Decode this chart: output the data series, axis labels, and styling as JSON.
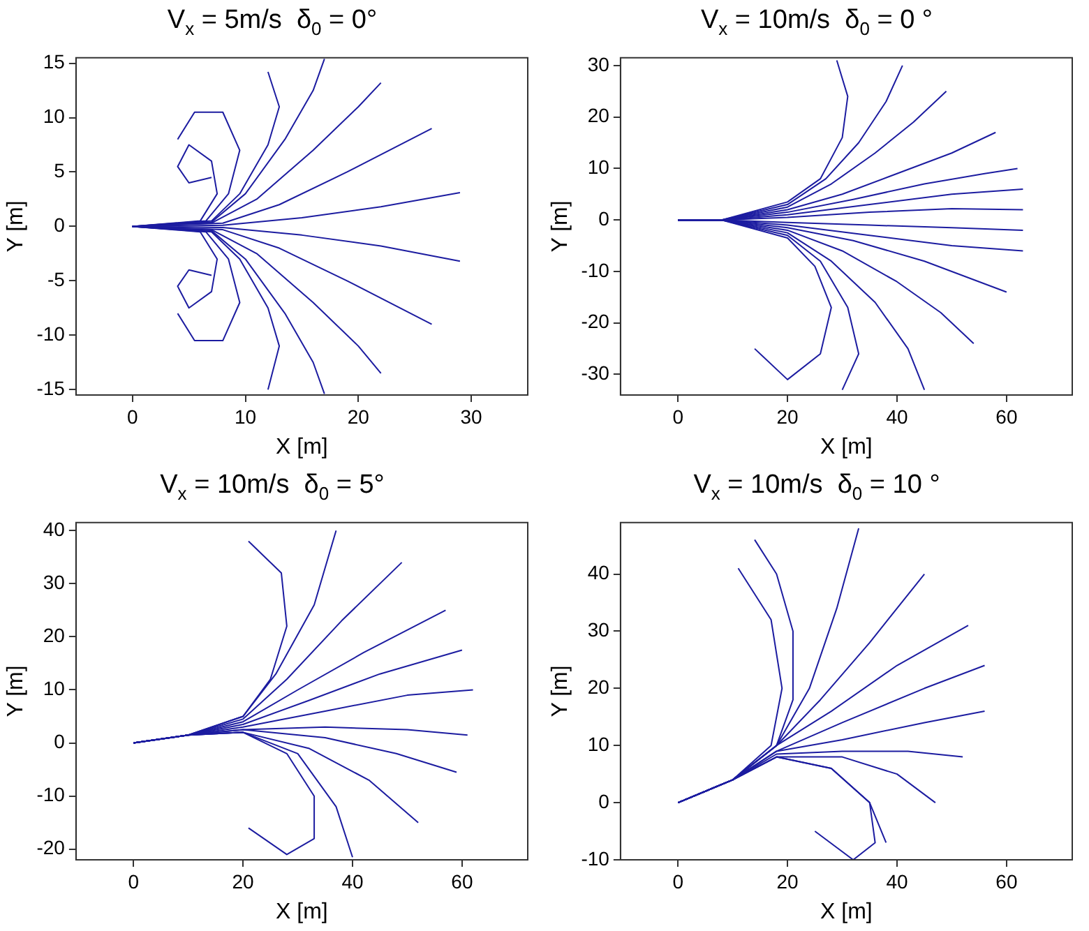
{
  "chart_data": [
    {
      "type": "line",
      "title": "V$_{x}$ = 5m/s  δ$_{0}$ = 0°",
      "xlabel": "X [m]",
      "ylabel": "Y [m]",
      "xlim": [
        -5,
        35
      ],
      "ylim": [
        -15.5,
        15.5
      ],
      "xticks": [
        0,
        10,
        20,
        30
      ],
      "yticks": [
        -15,
        -10,
        -5,
        0,
        5,
        10,
        15
      ],
      "marker": "none",
      "series": [
        {
          "color": "#1c1ca0",
          "x": [
            0,
            8,
            15,
            22,
            29
          ],
          "values": [
            0,
            0.1,
            0.8,
            1.8,
            3.1
          ]
        },
        {
          "color": "#1c1ca0",
          "x": [
            0,
            8,
            13,
            19,
            26.5
          ],
          "values": [
            0,
            0.3,
            2,
            5,
            9
          ]
        },
        {
          "color": "#1c1ca0",
          "x": [
            0,
            7,
            11,
            16,
            20,
            22
          ],
          "values": [
            0,
            0.3,
            2.5,
            7,
            11,
            13.2
          ]
        },
        {
          "color": "#1c1ca0",
          "x": [
            0,
            7,
            10,
            13.5,
            16,
            17
          ],
          "values": [
            0,
            0.4,
            3,
            8,
            12.5,
            15.4
          ]
        },
        {
          "color": "#1c1ca0",
          "x": [
            0,
            7,
            9.5,
            12,
            13,
            12
          ],
          "values": [
            0,
            0.5,
            3,
            7.5,
            11,
            14.2
          ]
        },
        {
          "color": "#1c1ca0",
          "x": [
            0,
            6.5,
            8.5,
            9.5,
            8,
            5.5,
            4
          ],
          "values": [
            0,
            0.5,
            3,
            7,
            10.5,
            10.5,
            8
          ]
        },
        {
          "color": "#1c1ca0",
          "x": [
            0,
            6,
            7.5,
            7,
            5,
            4,
            5,
            7
          ],
          "values": [
            0,
            0.5,
            3,
            6,
            7.5,
            5.5,
            4,
            4.5
          ]
        },
        {
          "color": "#1c1ca0",
          "x": [
            0,
            8,
            15,
            22,
            29
          ],
          "values": [
            0,
            -0.1,
            -0.8,
            -1.8,
            -3.2
          ]
        },
        {
          "color": "#1c1ca0",
          "x": [
            0,
            8,
            13,
            19,
            26.5
          ],
          "values": [
            0,
            -0.3,
            -2,
            -5,
            -9
          ]
        },
        {
          "color": "#1c1ca0",
          "x": [
            0,
            7,
            11,
            16,
            20,
            22
          ],
          "values": [
            0,
            -0.3,
            -2.5,
            -7,
            -11,
            -13.5
          ]
        },
        {
          "color": "#1c1ca0",
          "x": [
            0,
            7,
            10,
            13.5,
            16,
            17
          ],
          "values": [
            0,
            -0.4,
            -3,
            -8,
            -12.5,
            -15.4
          ]
        },
        {
          "color": "#1c1ca0",
          "x": [
            0,
            7,
            9.5,
            12,
            13,
            12
          ],
          "values": [
            0,
            -0.5,
            -3,
            -7.5,
            -11,
            -15
          ]
        },
        {
          "color": "#1c1ca0",
          "x": [
            0,
            6.5,
            8.5,
            9.5,
            8,
            5.5,
            4
          ],
          "values": [
            0,
            -0.5,
            -3,
            -7,
            -10.5,
            -10.5,
            -8
          ]
        },
        {
          "color": "#1c1ca0",
          "x": [
            0,
            6,
            7.5,
            7,
            5,
            4,
            5,
            7
          ],
          "values": [
            0,
            -0.5,
            -3,
            -6,
            -7.5,
            -5.5,
            -4,
            -4.5
          ]
        }
      ]
    },
    {
      "type": "line",
      "title": "V$_{x}$ = 10m/s  δ$_{0}$ = 0 °",
      "xlabel": "X [m]",
      "ylabel": "Y [m]",
      "xlim": [
        -10.5,
        72
      ],
      "ylim": [
        -34,
        31.5
      ],
      "xticks": [
        0,
        20,
        40,
        60
      ],
      "yticks": [
        -30,
        -20,
        -10,
        0,
        10,
        20,
        30
      ],
      "marker": "none",
      "series": [
        {
          "color": "#1c1ca0",
          "x": [
            0,
            8,
            20,
            35,
            50,
            63
          ],
          "values": [
            0,
            0,
            0.5,
            1.5,
            2.2,
            2
          ]
        },
        {
          "color": "#1c1ca0",
          "x": [
            0,
            8,
            20,
            35,
            50,
            63
          ],
          "values": [
            0,
            0,
            1,
            3,
            5,
            6
          ]
        },
        {
          "color": "#1c1ca0",
          "x": [
            0,
            8,
            20,
            32,
            45,
            56,
            62
          ],
          "values": [
            0,
            0,
            1.5,
            4,
            7,
            9,
            10
          ]
        },
        {
          "color": "#1c1ca0",
          "x": [
            0,
            8,
            20,
            30,
            40,
            50,
            58
          ],
          "values": [
            0,
            0,
            2,
            5,
            9,
            13,
            17
          ]
        },
        {
          "color": "#1c1ca0",
          "x": [
            0,
            8,
            20,
            28,
            36,
            43,
            49
          ],
          "values": [
            0,
            0,
            2.5,
            7,
            13,
            19,
            25
          ]
        },
        {
          "color": "#1c1ca0",
          "x": [
            0,
            8,
            20,
            27,
            33,
            38,
            41
          ],
          "values": [
            0,
            0,
            3,
            8,
            15,
            23,
            30
          ]
        },
        {
          "color": "#1c1ca0",
          "x": [
            0,
            8,
            20,
            26,
            30,
            31,
            29
          ],
          "values": [
            0,
            0,
            3.5,
            8,
            16,
            24,
            31
          ]
        },
        {
          "color": "#1c1ca0",
          "x": [
            0,
            8,
            20,
            35,
            50,
            63
          ],
          "values": [
            0,
            0,
            -0.5,
            -1,
            -1.5,
            -2
          ]
        },
        {
          "color": "#1c1ca0",
          "x": [
            0,
            8,
            20,
            35,
            50,
            63
          ],
          "values": [
            0,
            0,
            -1,
            -3,
            -5,
            -6
          ]
        },
        {
          "color": "#1c1ca0",
          "x": [
            0,
            8,
            20,
            32,
            45,
            55,
            60
          ],
          "values": [
            0,
            0,
            -1.5,
            -4,
            -8,
            -12,
            -14
          ]
        },
        {
          "color": "#1c1ca0",
          "x": [
            0,
            8,
            20,
            30,
            40,
            48,
            54
          ],
          "values": [
            0,
            0,
            -2,
            -6,
            -12,
            -18,
            -24
          ]
        },
        {
          "color": "#1c1ca0",
          "x": [
            0,
            8,
            20,
            28,
            36,
            42,
            45
          ],
          "values": [
            0,
            0,
            -2.5,
            -8,
            -16,
            -25,
            -33
          ]
        },
        {
          "color": "#1c1ca0",
          "x": [
            0,
            8,
            20,
            26,
            31,
            33,
            30
          ],
          "values": [
            0,
            0,
            -3,
            -8,
            -17,
            -26,
            -33
          ]
        },
        {
          "color": "#1c1ca0",
          "x": [
            0,
            8,
            20,
            25,
            28,
            26,
            20,
            14
          ],
          "values": [
            0,
            0,
            -3.5,
            -9,
            -17,
            -26,
            -31,
            -25
          ]
        }
      ]
    },
    {
      "type": "line",
      "title": "V$_{x}$ = 10m/s  δ$_{0}$ = 5°",
      "xlabel": "X [m]",
      "ylabel": "Y [m]",
      "xlim": [
        -10.5,
        72
      ],
      "ylim": [
        -22,
        41.5
      ],
      "xticks": [
        0,
        20,
        40,
        60
      ],
      "yticks": [
        -20,
        -10,
        0,
        10,
        20,
        30,
        40
      ],
      "marker": "none",
      "series": [
        {
          "color": "#1c1ca0",
          "x": [
            0,
            10,
            20,
            35,
            50,
            61
          ],
          "values": [
            0,
            1.5,
            2.5,
            3,
            2.5,
            1.5
          ]
        },
        {
          "color": "#1c1ca0",
          "x": [
            0,
            10,
            20,
            35,
            50,
            62
          ],
          "values": [
            0,
            1.5,
            3,
            6,
            9,
            10
          ]
        },
        {
          "color": "#1c1ca0",
          "x": [
            0,
            10,
            20,
            32,
            45,
            60
          ],
          "values": [
            0,
            1.5,
            3.5,
            8,
            13,
            17.5
          ]
        },
        {
          "color": "#1c1ca0",
          "x": [
            0,
            10,
            20,
            30,
            42,
            57
          ],
          "values": [
            0,
            1.5,
            4,
            10,
            17,
            25
          ]
        },
        {
          "color": "#1c1ca0",
          "x": [
            0,
            10,
            20,
            28,
            38,
            49
          ],
          "values": [
            0,
            1.5,
            4.5,
            12,
            23,
            34
          ]
        },
        {
          "color": "#1c1ca0",
          "x": [
            0,
            10,
            20,
            26,
            33,
            37
          ],
          "values": [
            0,
            1.5,
            5,
            13,
            26,
            40
          ]
        },
        {
          "color": "#1c1ca0",
          "x": [
            0,
            10,
            20,
            25,
            28,
            27,
            21
          ],
          "values": [
            0,
            1.5,
            5,
            12,
            22,
            32,
            38
          ]
        },
        {
          "color": "#1c1ca0",
          "x": [
            0,
            10,
            20,
            35,
            48,
            59
          ],
          "values": [
            0,
            1.5,
            2.5,
            1,
            -2,
            -5.5
          ]
        },
        {
          "color": "#1c1ca0",
          "x": [
            0,
            10,
            20,
            32,
            43,
            52
          ],
          "values": [
            0,
            1.5,
            2,
            -1,
            -7,
            -15
          ]
        },
        {
          "color": "#1c1ca0",
          "x": [
            0,
            10,
            20,
            30,
            37,
            40
          ],
          "values": [
            0,
            1.5,
            2,
            -2,
            -12,
            -21.5
          ]
        },
        {
          "color": "#1c1ca0",
          "x": [
            0,
            10,
            20,
            28,
            33,
            33,
            28,
            21
          ],
          "values": [
            0,
            1.5,
            2,
            -2,
            -10,
            -18,
            -21,
            -16
          ]
        }
      ]
    },
    {
      "type": "line",
      "title": "V$_{x}$ = 10m/s  δ$_{0}$ = 10 °",
      "xlabel": "X [m]",
      "ylabel": "Y [m]",
      "xlim": [
        -10.5,
        72
      ],
      "ylim": [
        -10,
        49
      ],
      "xticks": [
        0,
        20,
        40,
        60
      ],
      "yticks": [
        -10,
        0,
        10,
        20,
        30,
        40
      ],
      "marker": "none",
      "series": [
        {
          "color": "#1c1ca0",
          "x": [
            0,
            10,
            18,
            30,
            45,
            56
          ],
          "values": [
            0,
            4,
            9,
            14,
            20,
            24
          ]
        },
        {
          "color": "#1c1ca0",
          "x": [
            0,
            10,
            18,
            28,
            40,
            53
          ],
          "values": [
            0,
            4,
            10,
            16,
            24,
            31
          ]
        },
        {
          "color": "#1c1ca0",
          "x": [
            0,
            10,
            18,
            26,
            35,
            45
          ],
          "values": [
            0,
            4,
            10,
            18,
            28,
            40
          ]
        },
        {
          "color": "#1c1ca0",
          "x": [
            0,
            10,
            18,
            24,
            29,
            33
          ],
          "values": [
            0,
            4,
            10,
            20,
            34,
            48
          ]
        },
        {
          "color": "#1c1ca0",
          "x": [
            0,
            10,
            18,
            21,
            21,
            18,
            14
          ],
          "values": [
            0,
            4,
            10,
            18,
            30,
            40,
            46
          ]
        },
        {
          "color": "#1c1ca0",
          "x": [
            0,
            10,
            17,
            19,
            17,
            11
          ],
          "values": [
            0,
            4,
            10,
            20,
            32,
            41
          ]
        },
        {
          "color": "#1c1ca0",
          "x": [
            0,
            10,
            18,
            30,
            45,
            56
          ],
          "values": [
            0,
            4,
            9,
            11,
            14,
            16
          ]
        },
        {
          "color": "#1c1ca0",
          "x": [
            0,
            10,
            18,
            30,
            42,
            52
          ],
          "values": [
            0,
            4,
            8.5,
            9,
            9,
            8
          ]
        },
        {
          "color": "#1c1ca0",
          "x": [
            0,
            10,
            18,
            30,
            40,
            47
          ],
          "values": [
            0,
            4,
            8,
            8,
            5,
            0
          ]
        },
        {
          "color": "#1c1ca0",
          "x": [
            0,
            10,
            18,
            28,
            35,
            38
          ],
          "values": [
            0,
            4,
            8,
            6,
            0,
            -7
          ]
        },
        {
          "color": "#1c1ca0",
          "x": [
            0,
            10,
            18,
            28,
            35,
            36,
            32,
            25
          ],
          "values": [
            0,
            4,
            8,
            6,
            0,
            -7,
            -10,
            -5
          ]
        }
      ]
    }
  ]
}
